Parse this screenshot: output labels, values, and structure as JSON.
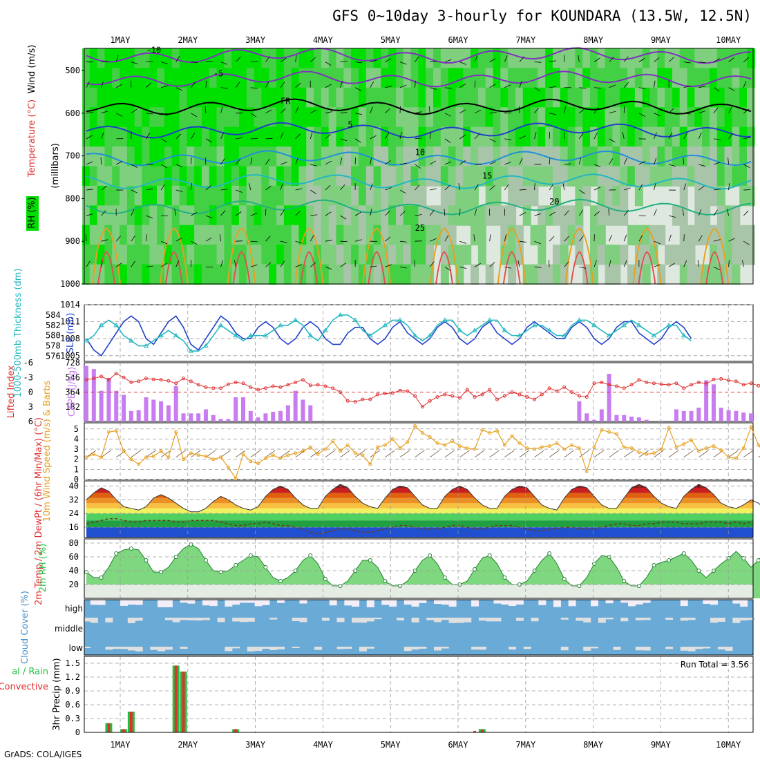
{
  "title": "GFS 0~10day 3-hourly for KOUNDARA (13.5W, 12.5N)",
  "footer": "GrADS: COLA/IGES",
  "run_total_label": "Run Total = 3.56",
  "colors": {
    "rh_green": "#00e000",
    "slp": "#1f3fc8",
    "thickness": "#22b8c0",
    "cape": "#c77cf0",
    "lifted_index": "#e03030",
    "wind_speed": "#e8a020",
    "precip_total": "#22c040",
    "precip_conv": "#e03030",
    "cloud": "#6aaad6",
    "cloud_bg": "#f3eef8"
  },
  "chart_data": [
    {
      "panel": "profile",
      "type": "heatmap",
      "ylabel": "(millibars)",
      "side_labels": [
        "Wind (m/s)",
        "Temperature (°C)",
        "RH (%)"
      ],
      "x": [
        "1MAY",
        "2MAY",
        "3MAY",
        "4MAY",
        "5MAY",
        "6MAY",
        "7MAY",
        "8MAY",
        "9MAY",
        "10MAY"
      ],
      "y_ticks": [
        500,
        600,
        700,
        800,
        900,
        1000
      ],
      "isotherm_labels": [
        "-10",
        "-5",
        "FR",
        "5",
        "10",
        "15",
        "20",
        "25"
      ]
    },
    {
      "panel": "slp_thickness",
      "type": "line",
      "ylabel": "SLP (mb)",
      "ylabel2": "1000-500mb Thickness (dm)",
      "yticks": [
        1005,
        1008,
        1011,
        1014
      ],
      "yticks2": [
        576,
        578,
        580,
        582,
        584
      ],
      "series": [
        {
          "name": "SLP (mb)",
          "values": [
            1008,
            1006,
            1005,
            1007,
            1009,
            1011,
            1012,
            1011,
            1008,
            1007,
            1009,
            1011,
            1012,
            1010,
            1007,
            1006,
            1008,
            1010,
            1012,
            1011,
            1009,
            1008,
            1008,
            1010,
            1011,
            1010,
            1008,
            1007,
            1008,
            1010,
            1011,
            1010,
            1008,
            1007,
            1007,
            1009,
            1010,
            1010,
            1008,
            1007,
            1008,
            1010,
            1011,
            1009,
            1008,
            1007,
            1008,
            1010,
            1011,
            1010,
            1008,
            1007,
            1008,
            1010,
            1011,
            1009,
            1008,
            1007,
            1008,
            1010,
            1011,
            1010,
            1009,
            1008,
            1008,
            1010,
            1011,
            1010,
            1008,
            1007,
            1008,
            1010,
            1011,
            1011,
            1009,
            1008,
            1007,
            1008,
            1010,
            1011,
            1010,
            1008
          ]
        },
        {
          "name": "Thickness (dm)",
          "values": [
            579,
            580,
            582,
            583,
            582,
            580,
            579,
            578,
            578,
            579,
            580,
            581,
            580,
            579,
            577,
            577,
            578,
            580,
            582,
            581,
            580,
            579,
            580,
            580,
            580,
            581,
            582,
            582,
            583,
            582,
            580,
            579,
            581,
            583,
            584,
            584,
            583,
            581,
            580,
            581,
            582,
            583,
            583,
            582,
            580,
            579,
            580,
            582,
            583,
            583,
            581,
            580,
            581,
            582,
            583,
            583,
            581,
            580,
            580,
            581,
            582,
            582,
            581,
            580,
            580,
            582,
            583,
            583,
            582,
            581,
            580,
            581,
            582,
            583,
            582,
            581,
            580,
            581,
            582,
            582,
            580,
            579
          ]
        }
      ]
    },
    {
      "panel": "cape_li",
      "type": "bar",
      "ylabel": "CAPE (J/kg)",
      "ylabel2": "Lifted Index",
      "yticks": [
        182,
        364,
        546,
        728
      ],
      "yticks2": [
        -6,
        -3,
        0,
        3,
        6
      ],
      "series": [
        {
          "name": "CAPE (J/kg)",
          "values": [
            690,
            650,
            380,
            540,
            380,
            330,
            130,
            140,
            300,
            270,
            250,
            200,
            440,
            100,
            100,
            100,
            150,
            80,
            30,
            30,
            300,
            300,
            130,
            50,
            100,
            120,
            130,
            200,
            380,
            270,
            200,
            0,
            0,
            0,
            0,
            0,
            0,
            0,
            0,
            0,
            0,
            0,
            0,
            0,
            0,
            0,
            0,
            0,
            0,
            0,
            0,
            0,
            0,
            0,
            0,
            0,
            0,
            0,
            0,
            0,
            0,
            0,
            0,
            0,
            0,
            0,
            250,
            100,
            20,
            150,
            590,
            80,
            80,
            60,
            50,
            20,
            0,
            10,
            0,
            150,
            130,
            130,
            170,
            510,
            460,
            170,
            140,
            130,
            110,
            100
          ]
        },
        {
          "name": "Lifted Index",
          "values": [
            -2.5,
            -2.8,
            -3.2,
            -2.5,
            -3.8,
            -3,
            -2,
            -2.2,
            -2.8,
            -2.6,
            -2.5,
            -2.3,
            -1.8,
            -2.8,
            -2.2,
            -1.5,
            -1,
            -0.8,
            -0.8,
            -1.6,
            -2,
            -1.8,
            -1,
            -0.5,
            -0.8,
            -1.2,
            -1,
            -1.5,
            -2,
            -2.5,
            -1.4,
            -1.5,
            -1.2,
            -0.8,
            0,
            1.8,
            2,
            1.5,
            1.5,
            0.5,
            0.3,
            0.2,
            -0.3,
            -0.2,
            0.8,
            3,
            1.8,
            1,
            0.5,
            0.8,
            1.2,
            -0.5,
            1,
            0.5,
            -0.5,
            1.5,
            0.8,
            0,
            0.5,
            1,
            1.5,
            0.5,
            -0.8,
            -0.2,
            -1,
            0,
            0.8,
            1,
            -1.8,
            -2,
            -1.5,
            -1.2,
            -0.8,
            -1.5,
            -2.5,
            -2,
            -1.8,
            -1.6,
            -1.5,
            -1.8,
            -0.8,
            -1.5,
            -2,
            -1.7,
            -2.6,
            -2.7,
            -2.4,
            -2.2,
            -1.5,
            -1.8,
            -1.3
          ]
        }
      ]
    },
    {
      "panel": "wind10m",
      "type": "line",
      "ylabel": "10m Wind Speed (m/s) & Barbs",
      "yticks": [
        0,
        1,
        2,
        3,
        4,
        5
      ],
      "series": [
        {
          "name": "10m Wind Speed (m/s)",
          "values": [
            2.2,
            2.5,
            2.2,
            4.7,
            4.8,
            2.8,
            2.0,
            1.5,
            2.2,
            2.3,
            2.8,
            2.2,
            4.7,
            2.0,
            2.6,
            2.4,
            2.3,
            2.0,
            2.2,
            1.2,
            0.1,
            2.5,
            1.8,
            1.6,
            2.1,
            2.4,
            2.1,
            2.4,
            2.6,
            2.8,
            3.2,
            2.5,
            3.0,
            3.8,
            2.8,
            3.4,
            2.6,
            2.4,
            1.5,
            3.2,
            3.4,
            4.0,
            3.1,
            3.7,
            5.3,
            4.6,
            4.2,
            3.6,
            3.4,
            3.8,
            3.3,
            3.1,
            3.0,
            4.9,
            4.6,
            4.8,
            3.4,
            4.3,
            3.6,
            3.1,
            3.0,
            3.2,
            3.3,
            3.6,
            3.0,
            3.4,
            3.1,
            0.8,
            3.2,
            4.9,
            4.7,
            4.5,
            3.2,
            3.1,
            2.7,
            2.5,
            2.6,
            3.0,
            5.1,
            3.2,
            3.5,
            3.9,
            2.8,
            3.1,
            3.3,
            2.9,
            2.2,
            2.1,
            3.1,
            5.2,
            3.4,
            2.4
          ]
        }
      ]
    },
    {
      "panel": "temp2m",
      "type": "area",
      "ylabel": "2m Temp / 2m DewPt / (6hr Min/Max) (°C)",
      "yticks": [
        16,
        24,
        32,
        40
      ],
      "series": [
        {
          "name": "2m Temp",
          "values": [
            32,
            36,
            39,
            37,
            32,
            28,
            27,
            26,
            28,
            33,
            35,
            33,
            30,
            27,
            25,
            25,
            27,
            31,
            34,
            32,
            29,
            27,
            26,
            28,
            34,
            38,
            40,
            38,
            33,
            29,
            27,
            27,
            34,
            38,
            41,
            39,
            34,
            30,
            28,
            27,
            33,
            38,
            40,
            39,
            34,
            29,
            27,
            27,
            34,
            38,
            40,
            38,
            33,
            29,
            27,
            27,
            34,
            38,
            40,
            39,
            34,
            29,
            27,
            26,
            33,
            38,
            40,
            39,
            34,
            29,
            27,
            27,
            33,
            39,
            41,
            39,
            34,
            30,
            28,
            27,
            34,
            38,
            41,
            39,
            35,
            30,
            28,
            27,
            29,
            32,
            30,
            26
          ]
        },
        {
          "name": "2m DewPt",
          "values": [
            18,
            19,
            20,
            21,
            21,
            20,
            19,
            19,
            20,
            20,
            20,
            20,
            19,
            19,
            20,
            20,
            20,
            20,
            19,
            18,
            17,
            17,
            18,
            18,
            19,
            18,
            17,
            17,
            16,
            15,
            13,
            12,
            13,
            14,
            15,
            15,
            14,
            13,
            13,
            14,
            15,
            16,
            17,
            17,
            16,
            15,
            15,
            15,
            16,
            17,
            17,
            16,
            15,
            15,
            16,
            17,
            17,
            17,
            16,
            15,
            14,
            14,
            15,
            15,
            16,
            16,
            15,
            15,
            15,
            16,
            17,
            18,
            18,
            17,
            17,
            18,
            18,
            19,
            19,
            19,
            18,
            18,
            18,
            19,
            19,
            19,
            18,
            19,
            18,
            19
          ]
        }
      ]
    },
    {
      "panel": "rh2m",
      "type": "area",
      "ylabel": "2m RH (%)",
      "yticks": [
        20,
        40,
        60,
        80
      ],
      "series": [
        {
          "name": "2m RH",
          "values": [
            38,
            30,
            30,
            45,
            65,
            70,
            72,
            70,
            55,
            38,
            38,
            45,
            60,
            72,
            78,
            72,
            55,
            40,
            38,
            40,
            48,
            55,
            62,
            60,
            45,
            30,
            25,
            30,
            40,
            55,
            62,
            50,
            28,
            18,
            18,
            25,
            40,
            55,
            55,
            45,
            25,
            18,
            18,
            25,
            40,
            55,
            62,
            50,
            30,
            20,
            20,
            25,
            42,
            58,
            62,
            50,
            30,
            20,
            20,
            25,
            40,
            55,
            65,
            50,
            28,
            18,
            18,
            30,
            50,
            62,
            60,
            45,
            25,
            18,
            18,
            30,
            48,
            52,
            55,
            60,
            65,
            55,
            40,
            30,
            40,
            50,
            58,
            68,
            58,
            45,
            55,
            70
          ]
        }
      ]
    },
    {
      "panel": "cloud",
      "type": "area",
      "ylabel": "Cloud Cover (%)",
      "tick_labels": [
        "high",
        "middle",
        "low"
      ]
    },
    {
      "panel": "precip",
      "type": "bar",
      "ylabel": "3hr Precip (mm)",
      "ylabel2": "Total / Rain Convective",
      "yticks": [
        0,
        0.3,
        0.6,
        0.9,
        1.2,
        1.5
      ],
      "series": [
        {
          "name": "Total",
          "values": [
            0,
            0,
            0,
            0.2,
            0,
            0.07,
            0.45,
            0,
            0,
            0,
            0,
            0,
            1.45,
            1.32,
            0,
            0,
            0,
            0,
            0,
            0,
            0.07,
            0,
            0,
            0,
            0,
            0,
            0,
            0,
            0,
            0,
            0,
            0,
            0,
            0,
            0,
            0,
            0,
            0,
            0,
            0,
            0,
            0,
            0,
            0,
            0,
            0,
            0,
            0,
            0,
            0,
            0,
            0,
            0,
            0.07,
            0,
            0,
            0,
            0,
            0,
            0,
            0,
            0,
            0,
            0,
            0,
            0,
            0,
            0,
            0,
            0,
            0,
            0,
            0,
            0,
            0,
            0,
            0,
            0,
            0,
            0,
            0,
            0,
            0,
            0,
            0,
            0,
            0,
            0,
            0,
            0
          ]
        },
        {
          "name": "Convective",
          "values": [
            0,
            0,
            0,
            0.2,
            0,
            0.07,
            0.45,
            0,
            0,
            0,
            0,
            0,
            1.45,
            1.32,
            0,
            0,
            0,
            0,
            0,
            0,
            0.07,
            0,
            0,
            0,
            0,
            0,
            0,
            0,
            0,
            0,
            0,
            0,
            0,
            0,
            0,
            0,
            0,
            0,
            0,
            0,
            0,
            0,
            0,
            0,
            0,
            0,
            0,
            0,
            0,
            0,
            0,
            0,
            0.03,
            0.06,
            0,
            0,
            0,
            0,
            0,
            0,
            0,
            0,
            0,
            0,
            0,
            0,
            0,
            0,
            0,
            0,
            0,
            0,
            0,
            0,
            0,
            0,
            0,
            0,
            0,
            0,
            0,
            0,
            0,
            0,
            0,
            0,
            0,
            0,
            0,
            0
          ]
        }
      ]
    }
  ]
}
